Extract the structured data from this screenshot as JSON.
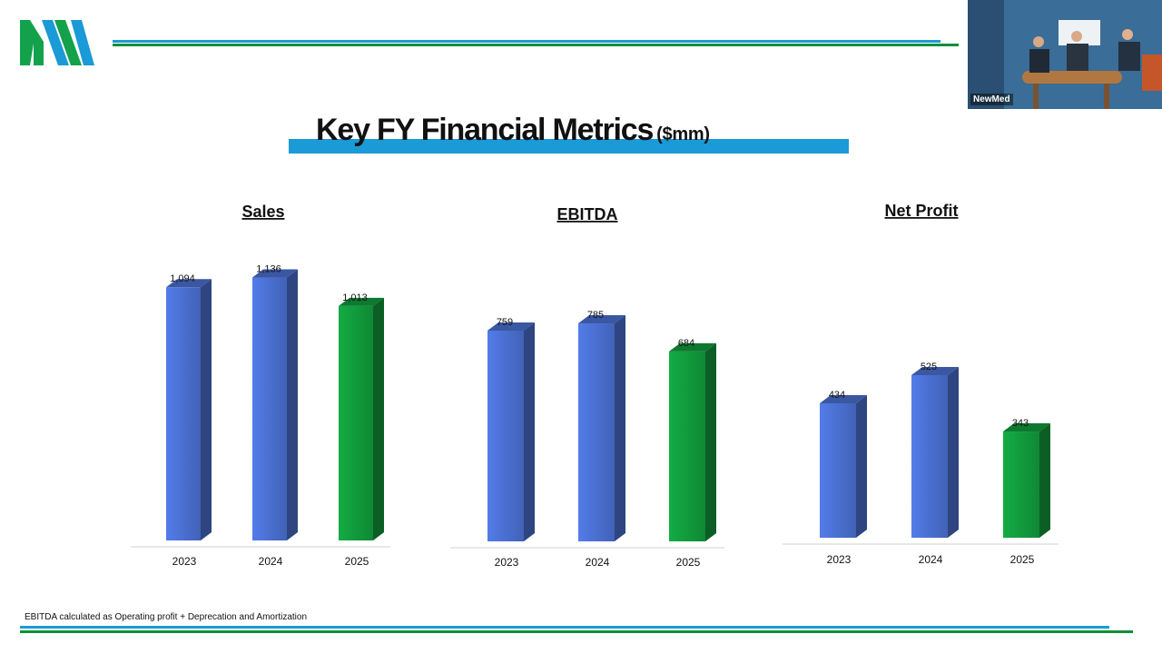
{
  "slide": {
    "title": "Key FY Financial Metrics",
    "title_unit": "($mm)",
    "footnote": "EBITDA calculated as Operating profit + Deprecation and Amortization",
    "video_label": "NewMed"
  },
  "colors": {
    "brand_blue": "#1a9ad6",
    "brand_green": "#0f8f3a",
    "bar_blue": "#4a6fd0",
    "bar_green": "#119a3c"
  },
  "chart_data": [
    {
      "type": "bar",
      "title": "Sales",
      "categories": [
        "2023",
        "2024",
        "2025"
      ],
      "values": [
        1094,
        1136,
        1013
      ],
      "labels": [
        "1,094",
        "1,136",
        "1,013"
      ],
      "highlight": [
        false,
        false,
        true
      ]
    },
    {
      "type": "bar",
      "title": "EBITDA",
      "categories": [
        "2023",
        "2024",
        "2025"
      ],
      "values": [
        759,
        785,
        684
      ],
      "labels": [
        "759",
        "785",
        "684"
      ],
      "highlight": [
        false,
        false,
        true
      ]
    },
    {
      "type": "bar",
      "title": "Net Profit",
      "categories": [
        "2023",
        "2024",
        "2025"
      ],
      "values": [
        434,
        525,
        343
      ],
      "labels": [
        "434",
        "525",
        "343"
      ],
      "highlight": [
        false,
        false,
        true
      ]
    }
  ]
}
